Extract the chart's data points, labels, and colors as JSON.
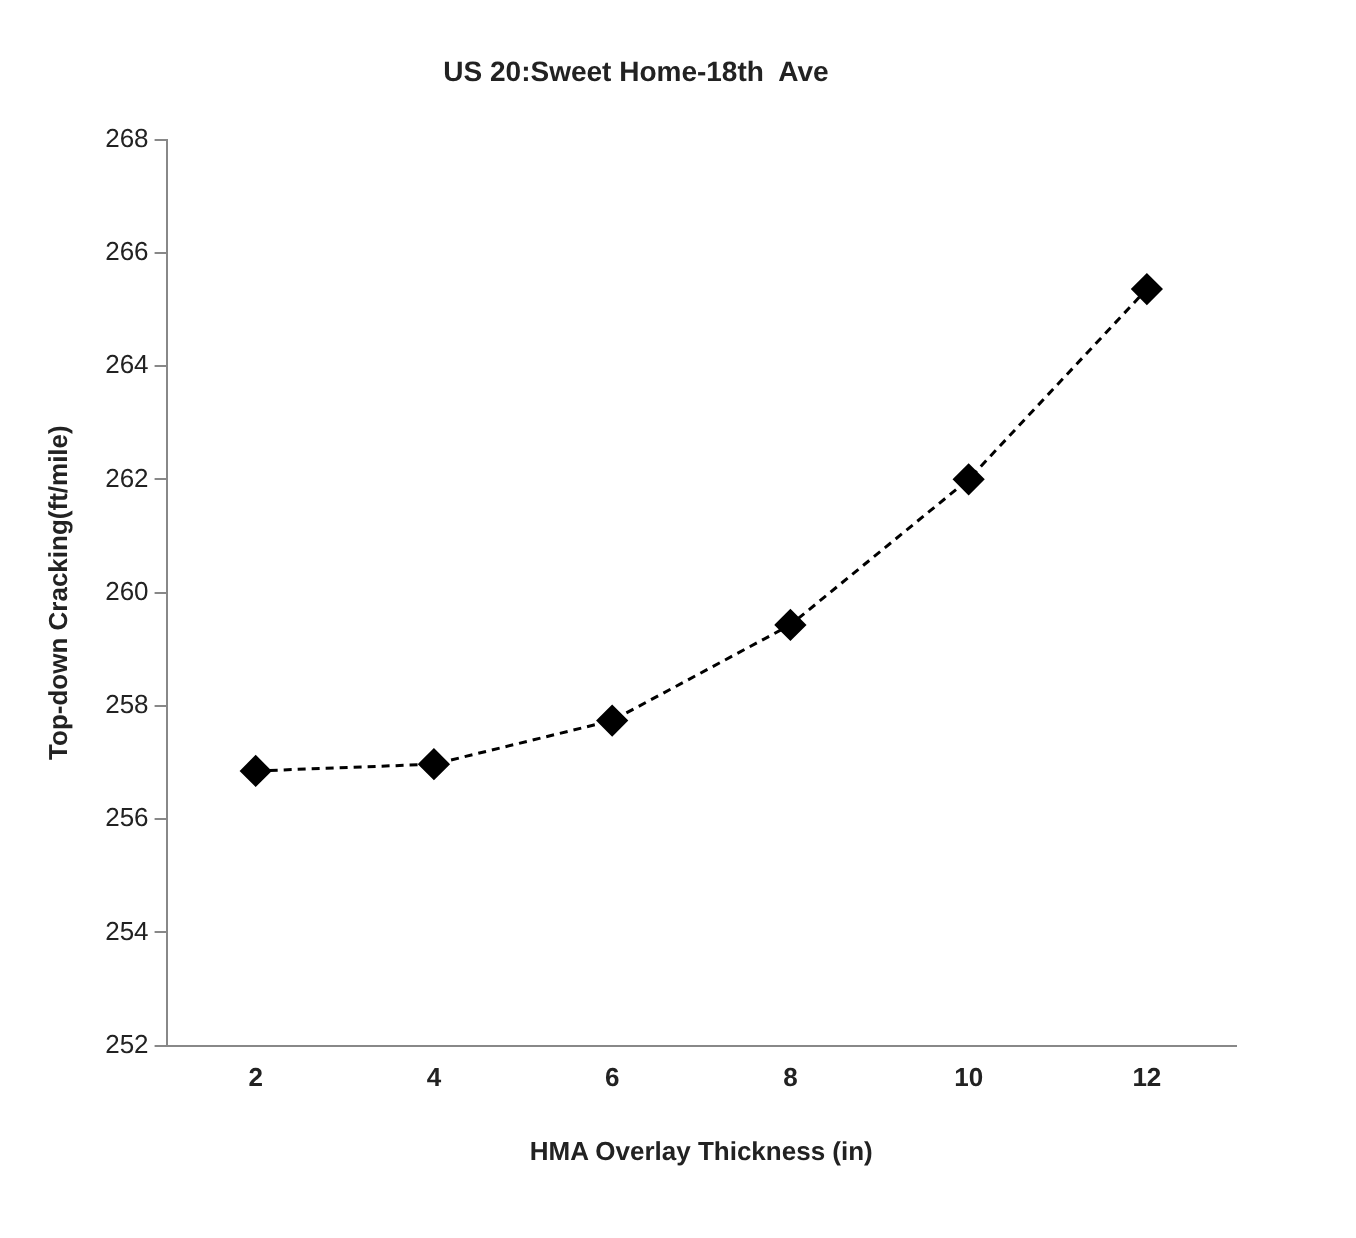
{
  "chart_data": {
    "type": "line",
    "title": "US 20:Sweet Home-18th  Ave",
    "xlabel": "HMA Overlay Thickness (in)",
    "ylabel": "Top-down Cracking(ft/mile)",
    "categories": [
      "2",
      "4",
      "6",
      "8",
      "10",
      "12"
    ],
    "series": [
      {
        "color": "#000000",
        "values": [
          256.85,
          256.97,
          257.74,
          259.43,
          262.0,
          265.36
        ]
      }
    ],
    "ylim": [
      252,
      268
    ],
    "yticks": [
      252,
      254,
      256,
      258,
      260,
      262,
      264,
      266,
      268
    ],
    "grid": false,
    "legend": false,
    "marker": "diamond",
    "line_style": "dashed"
  }
}
